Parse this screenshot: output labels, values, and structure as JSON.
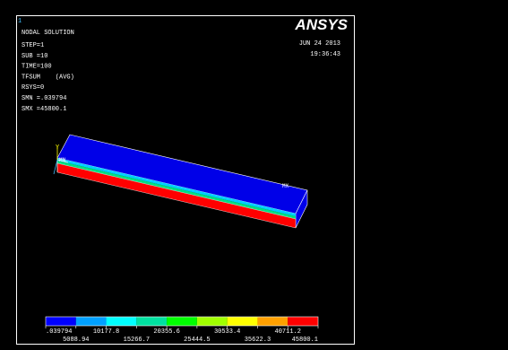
{
  "window_number": "1",
  "title": "NODAL SOLUTION",
  "info": [
    "STEP=1",
    "SUB =10",
    "TIME=100",
    "TFSUM    (AVG)",
    "RSYS=0",
    "SMN =.039794",
    "SMX =45800.1"
  ],
  "logo": "ANSYS",
  "date": "JUN 24 2013",
  "time": "19:36:43",
  "labels": {
    "max": "MX",
    "min": "MN",
    "axis_y": "Y"
  },
  "legend": {
    "colors": [
      "#0000ff",
      "#00a0ff",
      "#00ffff",
      "#00e0a0",
      "#00ff00",
      "#a0ff00",
      "#ffff00",
      "#ffa000",
      "#ff0000"
    ],
    "values": [
      ".039794",
      "5088.94",
      "10177.8",
      "15266.7",
      "20355.6",
      "25444.5",
      "30533.4",
      "35622.3",
      "40711.2",
      "45800.1"
    ]
  }
}
